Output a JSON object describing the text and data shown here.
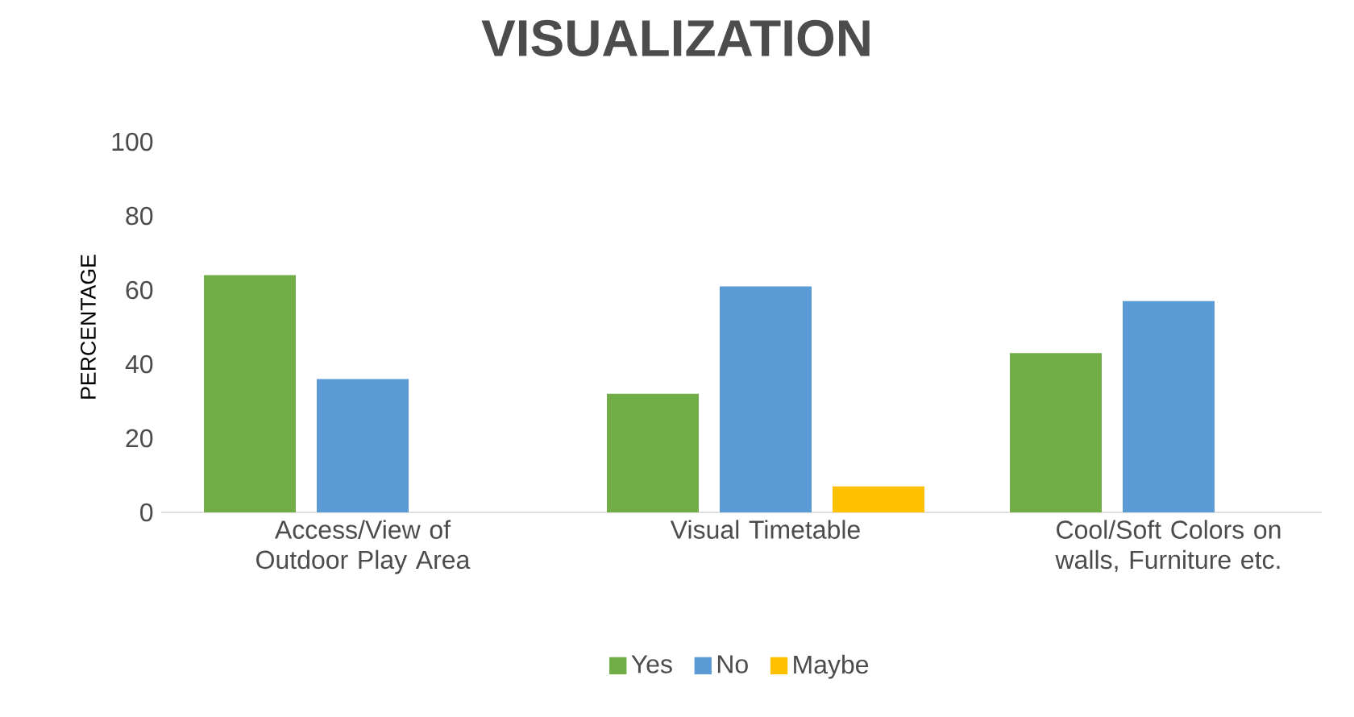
{
  "chart_data": {
    "type": "bar",
    "title": "VISUALIZATION",
    "ylabel": "PERCENTAGE",
    "categories": [
      "Access/View of Outdoor Play Area",
      "Visual Timetable",
      "Cool/Soft Colors on walls, Furniture etc."
    ],
    "series": [
      {
        "name": "Yes",
        "color": "#70ad47",
        "values": [
          64,
          32,
          43
        ]
      },
      {
        "name": "No",
        "color": "#5b9bd5",
        "values": [
          36,
          61,
          57
        ]
      },
      {
        "name": "Maybe",
        "color": "#ffc000",
        "values": [
          null,
          7,
          null
        ]
      }
    ],
    "ylim": [
      0,
      100
    ],
    "yticks": [
      0,
      20,
      40,
      60,
      80,
      100
    ],
    "grid": false,
    "legend": "bottom"
  }
}
